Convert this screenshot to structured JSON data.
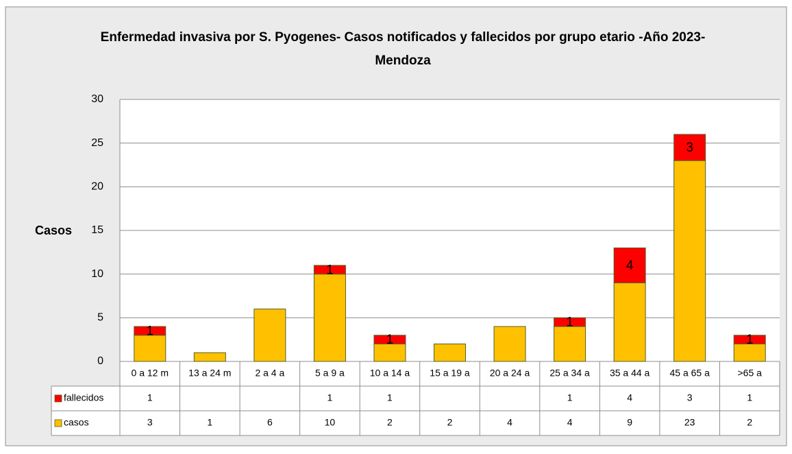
{
  "chart_data": {
    "type": "stacked_bar",
    "title": "Enfermedad invasiva por S. Pyogenes- Casos notificados  y fallecidos por grupo etario -Año 2023- Mendoza",
    "ylabel": "Casos",
    "categories": [
      "0 a 12 m",
      "13 a 24 m",
      "2 a 4 a",
      "5 a 9 a",
      "10 a 14 a",
      "15 a 19 a",
      "20 a 24 a",
      "25 a 34 a",
      "35 a 44 a",
      "45 a 65 a",
      ">65 a"
    ],
    "series": [
      {
        "name": "casos",
        "color": "#ffc000",
        "values": [
          3,
          1,
          6,
          10,
          2,
          2,
          4,
          4,
          9,
          23,
          2
        ]
      },
      {
        "name": "fallecidos",
        "color": "#ff0000",
        "values": [
          1,
          null,
          null,
          1,
          1,
          null,
          null,
          1,
          4,
          3,
          1
        ]
      }
    ],
    "ylim": [
      0,
      30
    ],
    "yticks": [
      0,
      5,
      10,
      15,
      20,
      25,
      30
    ],
    "grid": true
  }
}
